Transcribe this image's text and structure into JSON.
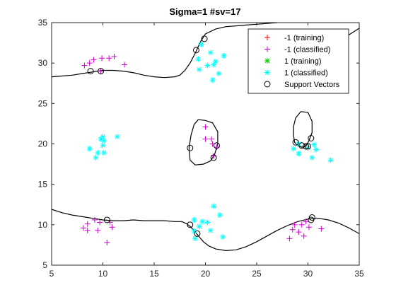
{
  "chart_data": {
    "type": "scatter",
    "title": "Sigma=1 #sv=17",
    "xlabel": "",
    "ylabel": "",
    "xlim": [
      5,
      35
    ],
    "ylim": [
      5,
      35
    ],
    "x_ticks": [
      "5",
      "10",
      "15",
      "20",
      "25",
      "30",
      "35"
    ],
    "y_ticks": [
      "5",
      "10",
      "15",
      "20",
      "25",
      "30",
      "35"
    ],
    "grid": false,
    "legend_position": "top-right",
    "colors": {
      "neg_training": "#ff0000",
      "neg_classified": "#cc00cc",
      "pos_training": "#00cc00",
      "pos_classified": "#00ffff",
      "support_vector": "#000000",
      "boundary": "#000000",
      "axes": "#262626"
    },
    "series": [
      {
        "name": "-1 (training)",
        "marker": "plus",
        "color": "#ff0000",
        "points": []
      },
      {
        "name": "-1 (classified)",
        "marker": "plus",
        "color": "#cc00cc",
        "points": [
          [
            8.2,
            29.7
          ],
          [
            8.7,
            30.0
          ],
          [
            9.1,
            30.4
          ],
          [
            9.9,
            30.6
          ],
          [
            10.6,
            30.6
          ],
          [
            11.1,
            30.8
          ],
          [
            12.1,
            29.8
          ],
          [
            9.8,
            29.0
          ],
          [
            20.0,
            22.1
          ],
          [
            20.0,
            20.6
          ],
          [
            20.6,
            20.6
          ],
          [
            20.7,
            20.0
          ],
          [
            21.1,
            19.6
          ],
          [
            20.8,
            18.5
          ],
          [
            8.1,
            9.6
          ],
          [
            8.5,
            9.3
          ],
          [
            8.5,
            10.1
          ],
          [
            9.2,
            10.6
          ],
          [
            9.7,
            10.3
          ],
          [
            9.5,
            9.3
          ],
          [
            10.4,
            7.8
          ],
          [
            10.9,
            9.7
          ],
          [
            10.7,
            10.3
          ],
          [
            28.2,
            8.3
          ],
          [
            28.5,
            9.4
          ],
          [
            28.7,
            10.0
          ],
          [
            29.4,
            10.0
          ],
          [
            29.1,
            9.1
          ],
          [
            29.6,
            8.6
          ],
          [
            30.1,
            9.7
          ],
          [
            31.3,
            9.5
          ],
          [
            29.8,
            10.4
          ]
        ]
      },
      {
        "name": "1 (training)",
        "marker": "asterisk",
        "color": "#00cc00",
        "points": []
      },
      {
        "name": "1 (classified)",
        "marker": "asterisk",
        "color": "#00ffff",
        "points": [
          [
            19.6,
            32.3
          ],
          [
            19.3,
            30.5
          ],
          [
            20.5,
            31.3
          ],
          [
            21.0,
            30.2
          ],
          [
            21.8,
            30.9
          ],
          [
            20.2,
            29.7
          ],
          [
            20.8,
            29.8
          ],
          [
            19.4,
            29.2
          ],
          [
            20.7,
            27.9
          ],
          [
            21.3,
            28.7
          ],
          [
            8.7,
            19.4
          ],
          [
            9.5,
            18.9
          ],
          [
            9.8,
            20.6
          ],
          [
            10.1,
            20.4
          ],
          [
            10.0,
            19.8
          ],
          [
            9.3,
            18.3
          ],
          [
            10.1,
            18.9
          ],
          [
            10.0,
            20.9
          ],
          [
            11.4,
            20.9
          ],
          [
            29.1,
            20.0
          ],
          [
            28.6,
            19.4
          ],
          [
            30.0,
            19.5
          ],
          [
            30.6,
            19.9
          ],
          [
            30.8,
            19.3
          ],
          [
            29.1,
            18.8
          ],
          [
            30.4,
            18.3
          ],
          [
            32.2,
            18.0
          ],
          [
            18.9,
            10.6
          ],
          [
            18.9,
            9.2
          ],
          [
            19.4,
            9.8
          ],
          [
            19.7,
            10.4
          ],
          [
            20.2,
            10.3
          ],
          [
            20.5,
            9.3
          ],
          [
            20.8,
            12.3
          ],
          [
            21.4,
            11.2
          ],
          [
            21.7,
            8.5
          ],
          [
            19.0,
            8.3
          ]
        ]
      },
      {
        "name": "Support Vectors",
        "marker": "circle",
        "color": "#000000",
        "points": [
          [
            8.8,
            29.0
          ],
          [
            9.8,
            29.0
          ],
          [
            19.1,
            31.6
          ],
          [
            19.9,
            33.0
          ],
          [
            18.5,
            19.5
          ],
          [
            20.8,
            18.3
          ],
          [
            21.1,
            19.8
          ],
          [
            28.8,
            20.2
          ],
          [
            29.4,
            19.8
          ],
          [
            29.8,
            19.7
          ],
          [
            30.0,
            19.7
          ],
          [
            30.3,
            20.7
          ],
          [
            10.4,
            10.6
          ],
          [
            18.5,
            10.0
          ],
          [
            19.2,
            8.9
          ],
          [
            30.4,
            10.9
          ],
          [
            30.3,
            10.6
          ]
        ]
      }
    ],
    "boundaries": [
      [
        [
          5,
          28.3
        ],
        [
          6,
          28.4
        ],
        [
          7,
          28.5
        ],
        [
          8,
          28.7
        ],
        [
          9,
          28.9
        ],
        [
          10,
          29.1
        ],
        [
          11,
          29.1
        ],
        [
          12,
          29.0
        ],
        [
          13,
          28.8
        ],
        [
          14,
          28.5
        ],
        [
          15,
          28.3
        ],
        [
          16,
          28.2
        ],
        [
          17,
          28.3
        ],
        [
          17.5,
          28.5
        ],
        [
          18,
          29.1
        ],
        [
          18.5,
          30.0
        ],
        [
          19,
          31.2
        ],
        [
          19.5,
          32.6
        ],
        [
          20,
          33.6
        ],
        [
          21,
          34.2
        ],
        [
          22,
          34.5
        ],
        [
          23,
          34.6
        ],
        [
          24,
          34.7
        ],
        [
          25,
          34.8
        ],
        [
          26,
          34.9
        ],
        [
          27,
          35.0
        ]
      ],
      [
        [
          30,
          32.2
        ],
        [
          31,
          31.8
        ],
        [
          32,
          32.0
        ],
        [
          33,
          32.6
        ],
        [
          34,
          33.5
        ],
        [
          35,
          34.3
        ]
      ],
      [
        [
          5,
          11.9
        ],
        [
          6,
          11.5
        ],
        [
          7,
          11.2
        ],
        [
          8,
          11.0
        ],
        [
          9,
          10.8
        ],
        [
          10,
          10.6
        ],
        [
          11,
          10.5
        ],
        [
          12,
          10.5
        ],
        [
          13,
          10.6
        ],
        [
          14,
          10.5
        ],
        [
          15,
          10.5
        ],
        [
          16,
          10.5
        ],
        [
          17,
          10.4
        ],
        [
          17.7,
          10.4
        ],
        [
          18.2,
          10.1
        ],
        [
          18.6,
          9.7
        ],
        [
          19,
          9.1
        ],
        [
          19.4,
          8.5
        ],
        [
          19.8,
          7.9
        ],
        [
          20.3,
          7.4
        ],
        [
          21,
          7.0
        ],
        [
          22,
          6.8
        ],
        [
          23,
          6.9
        ],
        [
          24,
          7.3
        ],
        [
          25,
          7.9
        ],
        [
          26,
          8.6
        ],
        [
          27,
          9.3
        ],
        [
          28,
          9.9
        ],
        [
          29,
          10.4
        ],
        [
          30,
          10.7
        ],
        [
          31,
          10.8
        ],
        [
          32,
          10.6
        ],
        [
          33,
          10.2
        ],
        [
          34,
          9.6
        ],
        [
          35,
          8.9
        ]
      ],
      [
        [
          19.3,
          23.0
        ],
        [
          20.0,
          22.9
        ],
        [
          20.7,
          22.6
        ],
        [
          21.2,
          21.5
        ],
        [
          21.2,
          20.0
        ],
        [
          20.9,
          18.7
        ],
        [
          20.5,
          17.9
        ],
        [
          19.8,
          17.5
        ],
        [
          19.0,
          17.4
        ],
        [
          18.5,
          18.0
        ],
        [
          18.4,
          19.5
        ],
        [
          18.6,
          21.1
        ],
        [
          18.9,
          22.4
        ],
        [
          19.3,
          23.0
        ]
      ],
      [
        [
          29.3,
          24.0
        ],
        [
          30.0,
          23.9
        ],
        [
          30.4,
          22.8
        ],
        [
          30.4,
          21.4
        ],
        [
          30.1,
          20.4
        ],
        [
          29.8,
          19.7
        ],
        [
          29.4,
          19.6
        ],
        [
          29.0,
          19.8
        ],
        [
          28.7,
          20.2
        ],
        [
          28.6,
          21.0
        ],
        [
          28.6,
          22.2
        ],
        [
          28.8,
          23.2
        ],
        [
          29.3,
          24.0
        ]
      ]
    ]
  }
}
